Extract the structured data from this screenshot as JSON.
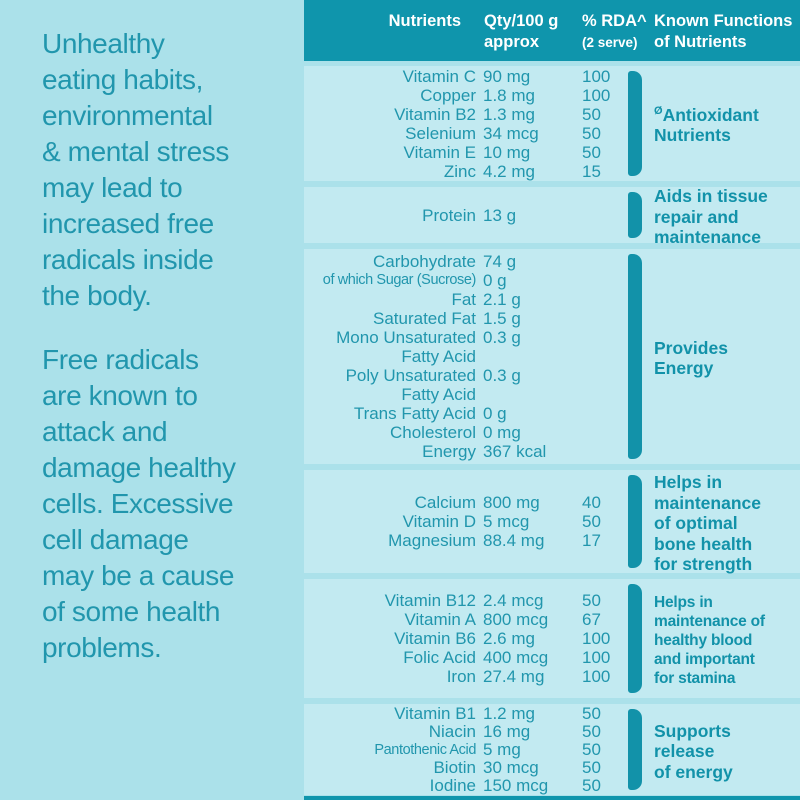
{
  "colors": {
    "page_bg": "#abe1ea",
    "band_bg": "#c2eaf1",
    "header_bg": "#0f95ac",
    "header_text": "#ffffff",
    "body_text": "#2196ad",
    "accent": "#1292a9"
  },
  "left_panel": {
    "paragraph1": "Unhealthy\neating habits,\nenvironmental\n& mental stress\nmay lead to\nincreased free\nradicals inside\nthe body.",
    "paragraph2": "Free radicals\nare known to\nattack and\ndamage healthy\ncells. Excessive\ncell damage\nmay be a cause\nof some health\nproblems."
  },
  "table": {
    "header": {
      "nutrients": "Nutrients",
      "qty": "Qty/100 g\napprox",
      "rda_line1": "% RDA^",
      "rda_line2": "(2 serve)",
      "functions": "Known Functions\nof Nutrients"
    },
    "groups": [
      {
        "prefix": "Ø",
        "function": "Antioxidant\nNutrients",
        "rows": [
          {
            "name": "Vitamin C",
            "qty": "90 mg",
            "rda": "100"
          },
          {
            "name": "Copper",
            "qty": "1.8 mg",
            "rda": "100"
          },
          {
            "name": "Vitamin B2",
            "qty": "1.3 mg",
            "rda": "50"
          },
          {
            "name": "Selenium",
            "qty": "34 mcg",
            "rda": "50"
          },
          {
            "name": "Vitamin E",
            "qty": "10 mg",
            "rda": "50"
          },
          {
            "name": "Zinc",
            "qty": "4.2 mg",
            "rda": "15"
          }
        ]
      },
      {
        "prefix": "",
        "function": "Aids in tissue\nrepair and\nmaintenance",
        "rows": [
          {
            "name": "Protein",
            "qty": "13 g",
            "rda": ""
          }
        ]
      },
      {
        "prefix": "",
        "function": "Provides\nEnergy",
        "rows": [
          {
            "name": "Carbohydrate",
            "qty": "74 g",
            "rda": ""
          },
          {
            "name": "of which Sugar (Sucrose)",
            "qty": "0 g",
            "rda": "",
            "small": true
          },
          {
            "name": "Fat",
            "qty": "2.1 g",
            "rda": ""
          },
          {
            "name": "Saturated Fat",
            "qty": "1.5 g",
            "rda": ""
          },
          {
            "name": "Mono Unsaturated\nFatty Acid",
            "qty": "0.3 g",
            "rda": ""
          },
          {
            "name": "Poly Unsaturated\nFatty Acid",
            "qty": "0.3 g",
            "rda": ""
          },
          {
            "name": "Trans Fatty Acid",
            "qty": "0 g",
            "rda": ""
          },
          {
            "name": "Cholesterol",
            "qty": "0 mg",
            "rda": ""
          },
          {
            "name": "Energy",
            "qty": "367 kcal",
            "rda": ""
          }
        ]
      },
      {
        "prefix": "",
        "function": "Helps in\nmaintenance\nof optimal\nbone health\nfor strength",
        "rows": [
          {
            "name": "Calcium",
            "qty": "800 mg",
            "rda": "40"
          },
          {
            "name": "Vitamin D",
            "qty": "5 mcg",
            "rda": "50"
          },
          {
            "name": "Magnesium",
            "qty": "88.4 mg",
            "rda": "17"
          }
        ]
      },
      {
        "prefix": "",
        "function": "Helps in\nmaintenance of\nhealthy blood\nand important\nfor stamina",
        "compact": true,
        "rows": [
          {
            "name": "Vitamin B12",
            "qty": "2.4 mcg",
            "rda": "50"
          },
          {
            "name": "Vitamin A",
            "qty": "800 mcg",
            "rda": "67"
          },
          {
            "name": "Vitamin B6",
            "qty": "2.6 mg",
            "rda": "100"
          },
          {
            "name": "Folic Acid",
            "qty": "400 mcg",
            "rda": "100"
          },
          {
            "name": "Iron",
            "qty": "27.4 mg",
            "rda": "100"
          }
        ]
      },
      {
        "prefix": "",
        "function": "Supports\nrelease\nof energy",
        "rows": [
          {
            "name": "Vitamin B1",
            "qty": "1.2 mg",
            "rda": "50"
          },
          {
            "name": "Niacin",
            "qty": "16 mg",
            "rda": "50"
          },
          {
            "name": "Pantothenic Acid",
            "qty": "5 mg",
            "rda": "50",
            "small": true
          },
          {
            "name": "Biotin",
            "qty": "30 mcg",
            "rda": "50"
          },
          {
            "name": "Iodine",
            "qty": "150 mcg",
            "rda": "50"
          }
        ]
      }
    ]
  }
}
